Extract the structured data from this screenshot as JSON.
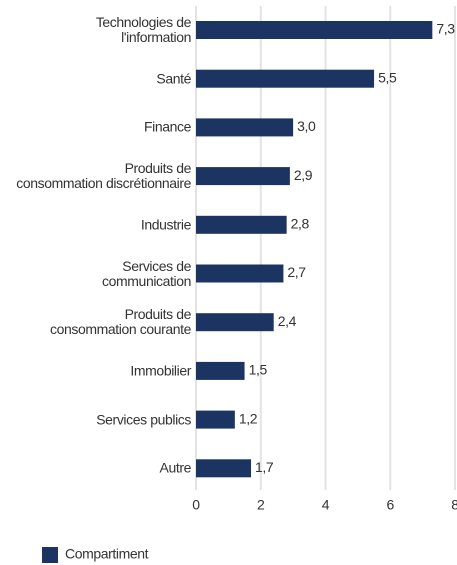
{
  "chart_data": {
    "type": "bar",
    "orientation": "horizontal",
    "categories": [
      "Technologies de\nl'information",
      "Santé",
      "Finance",
      "Produits de\nconsommation discrétionnaire",
      "Industrie",
      "Services de\ncommunication",
      "Produits de\nconsommation courante",
      "Immobilier",
      "Services publics",
      "Autre"
    ],
    "series": [
      {
        "name": "Compartiment",
        "color": "#1c3461",
        "values": [
          7.3,
          5.5,
          3.0,
          2.9,
          2.8,
          2.7,
          2.4,
          1.5,
          1.2,
          1.7
        ],
        "value_labels": [
          "7,3",
          "5,5",
          "3,0",
          "2,9",
          "2,8",
          "2,7",
          "2,4",
          "1,5",
          "1,2",
          "1,7"
        ]
      }
    ],
    "xlim": [
      0,
      8
    ],
    "xticks": [
      0,
      2,
      4,
      6,
      8
    ],
    "grid": true,
    "legend": "bottom-left"
  }
}
